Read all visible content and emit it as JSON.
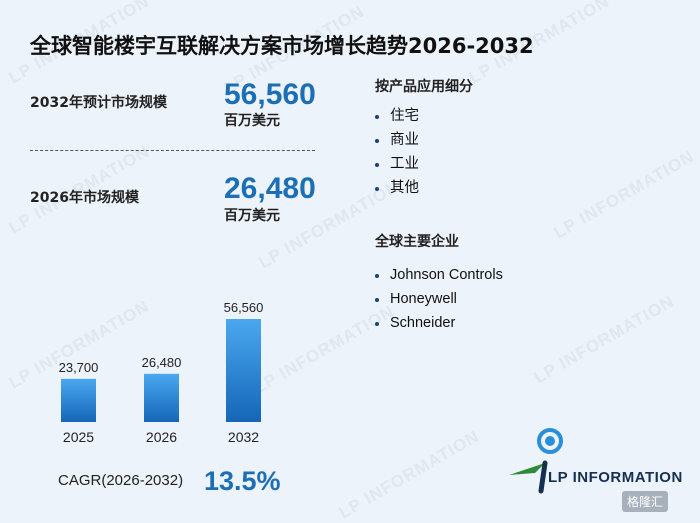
{
  "title": "全球智能楼宇互联解决方案市场增长趋势2026-2032",
  "stats": [
    {
      "label": "2032年预计市场规模",
      "value": "56,560",
      "unit": "百万美元"
    },
    {
      "label": "2026年市场规模",
      "value": "26,480",
      "unit": "百万美元"
    }
  ],
  "segments": {
    "title": "按产品应用细分",
    "items": [
      "住宅",
      "商业",
      "工业",
      "其他"
    ]
  },
  "companies": {
    "title": "全球主要企业",
    "items": [
      "Johnson Controls",
      "Honeywell",
      "Schneider"
    ]
  },
  "cagr": {
    "label": "CAGR(2026-2032)",
    "value": "13.5%"
  },
  "watermark_text": "LP INFORMATION",
  "logo": {
    "text": "LP INFORMATION"
  },
  "corner_badge": "格隆汇",
  "colors": {
    "accent": "#1c6fb5",
    "bar_top": "#4aa8ee",
    "bar_bottom": "#1566b8",
    "background": "#edf3fa"
  },
  "chart_data": {
    "type": "bar",
    "categories": [
      "2025",
      "2026",
      "2032"
    ],
    "values": [
      23700,
      26480,
      56560
    ],
    "value_labels": [
      "23,700",
      "26,480",
      "56,560"
    ],
    "title": "",
    "xlabel": "",
    "ylabel": "",
    "grid": false,
    "legend": "none"
  }
}
